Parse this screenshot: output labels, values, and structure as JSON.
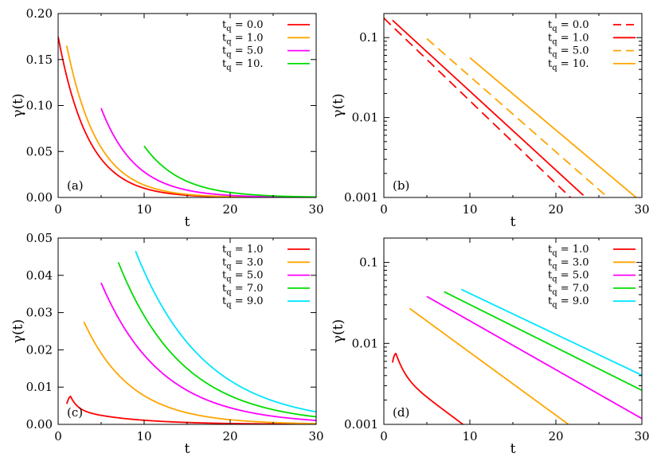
{
  "chart_data": [
    {
      "id": "a",
      "type": "line",
      "panel_label": "(a)",
      "yscale": "linear",
      "xlabel": "t",
      "ylabel": "γ(t)",
      "xlim": [
        0,
        30
      ],
      "ylim": [
        0,
        0.2
      ],
      "xticks": [
        0,
        10,
        20,
        30
      ],
      "xtick_labels": [
        "0",
        "10",
        "20",
        "30"
      ],
      "yticks": [
        0,
        0.05,
        0.1,
        0.15,
        0.2
      ],
      "ytick_labels": [
        "0.00",
        "0.05",
        "0.10",
        "0.15",
        "0.20"
      ],
      "legend_position": "top-right",
      "series": [
        {
          "tq_value": "0.0",
          "color": "#ff0000",
          "dash": false,
          "start": 0,
          "peak": 0.175,
          "tau": 3.5
        },
        {
          "tq_value": "1.0",
          "color": "#ffa500",
          "dash": false,
          "start": 1,
          "peak": 0.165,
          "tau": 3.6
        },
        {
          "tq_value": "5.0",
          "color": "#ff00ff",
          "dash": false,
          "start": 5,
          "peak": 0.097,
          "tau": 4.0
        },
        {
          "tq_value": "10.",
          "color": "#00dd00",
          "dash": false,
          "start": 10,
          "peak": 0.056,
          "tau": 4.3
        }
      ]
    },
    {
      "id": "b",
      "type": "line",
      "panel_label": "(b)",
      "yscale": "log",
      "xlabel": "t",
      "ylabel": "γ(t)",
      "xlim": [
        0,
        30
      ],
      "ylim": [
        0.001,
        0.2
      ],
      "xticks": [
        0,
        10,
        20,
        30
      ],
      "xtick_labels": [
        "0",
        "10",
        "20",
        "30"
      ],
      "yticks": [
        0.001,
        0.01,
        0.1
      ],
      "ytick_labels": [
        "0.001",
        "0.01",
        "0.1"
      ],
      "legend_position": "top-right",
      "series": [
        {
          "tq_value": "0.0",
          "color": "#ff0000",
          "dash": true,
          "start": 0,
          "end": 22.3,
          "peak": 0.175,
          "tau": 4.2
        },
        {
          "tq_value": "1.0",
          "color": "#ff0000",
          "dash": false,
          "start": 1,
          "end": 23.2,
          "peak": 0.165,
          "tau": 4.4
        },
        {
          "tq_value": "5.0",
          "color": "#ffa500",
          "dash": true,
          "start": 5,
          "end": 26.0,
          "peak": 0.097,
          "tau": 4.6
        },
        {
          "tq_value": "10.",
          "color": "#ffa500",
          "dash": false,
          "start": 10,
          "end": 29.5,
          "peak": 0.056,
          "tau": 4.8
        }
      ]
    },
    {
      "id": "c",
      "type": "line",
      "panel_label": "(c)",
      "yscale": "linear",
      "xlabel": "t",
      "ylabel": "γ(t)",
      "xlim": [
        0,
        30
      ],
      "ylim": [
        0,
        0.05
      ],
      "xticks": [
        0,
        10,
        20,
        30
      ],
      "xtick_labels": [
        "0",
        "10",
        "20",
        "30"
      ],
      "yticks": [
        0,
        0.01,
        0.02,
        0.03,
        0.04,
        0.05
      ],
      "ytick_labels": [
        "0.00",
        "0.01",
        "0.02",
        "0.03",
        "0.04",
        "0.05"
      ],
      "legend_position": "top-right",
      "series": [
        {
          "tq_value": "1.0",
          "color": "#ff0000",
          "dash": false,
          "start": 1,
          "start_value": 0.0055,
          "peak_t": 1.45,
          "peak": 0.0075,
          "tau": 6.5
        },
        {
          "tq_value": "3.0",
          "color": "#ffa500",
          "dash": false,
          "start": 3,
          "start_value": 0.0275,
          "peak": 0.0275,
          "tau": 5.5
        },
        {
          "tq_value": "5.0",
          "color": "#ff00ff",
          "dash": false,
          "start": 5,
          "start_value": 0.038,
          "peak": 0.038,
          "tau": 7.0
        },
        {
          "tq_value": "7.0",
          "color": "#00dd00",
          "dash": false,
          "start": 7,
          "start_value": 0.0435,
          "peak": 0.0435,
          "tau": 7.5
        },
        {
          "tq_value": "9.0",
          "color": "#00e5ff",
          "dash": false,
          "start": 9,
          "start_value": 0.0465,
          "peak": 0.0465,
          "tau": 8.0
        }
      ]
    },
    {
      "id": "d",
      "type": "line",
      "panel_label": "(d)",
      "yscale": "log",
      "xlabel": "t",
      "ylabel": "γ(t)",
      "xlim": [
        0,
        30
      ],
      "ylim": [
        0.001,
        0.2
      ],
      "xticks": [
        0,
        10,
        20,
        30
      ],
      "xtick_labels": [
        "0",
        "10",
        "20",
        "30"
      ],
      "yticks": [
        0.001,
        0.01,
        0.1
      ],
      "ytick_labels": [
        "0.001",
        "0.01",
        "0.1"
      ],
      "legend_position": "top-right",
      "series": [
        {
          "tq_value": "1.0",
          "color": "#ff0000",
          "dash": false,
          "start": 1,
          "end": 10.8,
          "start_value": 0.0058,
          "peak_t": 1.4,
          "peak": 0.0075,
          "tau": 5.5
        },
        {
          "tq_value": "3.0",
          "color": "#ffa500",
          "dash": false,
          "start": 3,
          "end": 21.8,
          "start_value": 0.027,
          "peak": 0.027,
          "tau": 5.6
        },
        {
          "tq_value": "5.0",
          "color": "#ff00ff",
          "dash": false,
          "start": 5,
          "end": 30,
          "start_value": 0.038,
          "peak": 0.038,
          "tau": 7.2
        },
        {
          "tq_value": "7.0",
          "color": "#00dd00",
          "dash": false,
          "start": 7,
          "end": 30,
          "start_value": 0.0435,
          "peak": 0.0435,
          "tau": 8.2
        },
        {
          "tq_value": "9.0",
          "color": "#00e5ff",
          "dash": false,
          "start": 9,
          "end": 30,
          "start_value": 0.0465,
          "peak": 0.0465,
          "tau": 8.6
        }
      ]
    }
  ],
  "legend": {
    "prefix": "t",
    "subscript": "q",
    "equals": " = "
  }
}
